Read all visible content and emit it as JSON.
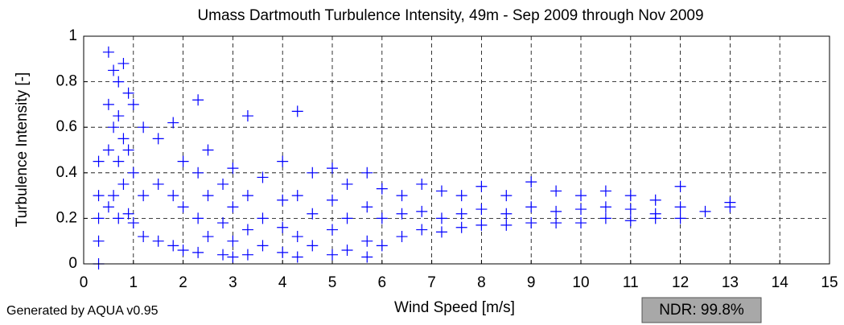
{
  "chart_data": {
    "type": "scatter",
    "title": "Umass Dartmouth Turbulence Intensity, 49m - Sep 2009 through Nov 2009",
    "x_label": "Wind Speed [m/s]",
    "y_label": "Turbulence Intensity [-]",
    "footer": "Generated by AQUA v0.95",
    "ndr_label": "NDR: 99.8%",
    "xlim": [
      0,
      15
    ],
    "xticks": [
      0,
      1,
      2,
      3,
      4,
      5,
      6,
      7,
      8,
      9,
      10,
      11,
      12,
      13,
      14,
      15
    ],
    "ylim": [
      0,
      1
    ],
    "yticks": [
      0,
      0.2,
      0.4,
      0.6,
      0.8,
      1
    ],
    "grid": true,
    "x": [
      0.3,
      0.3,
      0.3,
      0.3,
      0.3,
      0.5,
      0.5,
      0.5,
      0.5,
      0.6,
      0.6,
      0.6,
      0.7,
      0.7,
      0.7,
      0.7,
      0.8,
      0.8,
      0.8,
      0.9,
      0.9,
      0.9,
      1,
      1,
      1,
      1.2,
      1.2,
      1.2,
      1.5,
      1.5,
      1.5,
      1.8,
      1.8,
      1.8,
      2,
      2,
      2,
      2.3,
      2.3,
      2.3,
      2.3,
      2.5,
      2.5,
      2.5,
      2.8,
      2.8,
      2.8,
      3,
      3,
      3,
      3,
      3.3,
      3.3,
      3.3,
      3.3,
      3.6,
      3.6,
      3.6,
      4,
      4,
      4,
      4,
      4.3,
      4.3,
      4.3,
      4.3,
      4.6,
      4.6,
      4.6,
      5,
      5,
      5,
      5,
      5.3,
      5.3,
      5.3,
      5.7,
      5.7,
      5.7,
      5.7,
      6,
      6,
      6,
      6.4,
      6.4,
      6.4,
      6.8,
      6.8,
      6.8,
      7.2,
      7.2,
      7.2,
      7.6,
      7.6,
      7.6,
      8,
      8,
      8,
      8.5,
      8.5,
      8.5,
      9,
      9,
      9,
      9.5,
      9.5,
      9.5,
      10,
      10,
      10,
      10.5,
      10.5,
      10.5,
      11,
      11,
      11,
      11.5,
      11.5,
      11.5,
      12,
      12,
      12,
      12.5,
      13,
      13
    ],
    "series": [
      {
        "color": "#0000ff",
        "values": [
          0,
          0.1,
          0.2,
          0.3,
          0.45,
          0.93,
          0.7,
          0.5,
          0.25,
          0.85,
          0.6,
          0.3,
          0.8,
          0.65,
          0.45,
          0.2,
          0.88,
          0.55,
          0.35,
          0.75,
          0.5,
          0.22,
          0.7,
          0.4,
          0.18,
          0.6,
          0.3,
          0.12,
          0.55,
          0.35,
          0.1,
          0.62,
          0.3,
          0.08,
          0.45,
          0.25,
          0.06,
          0.72,
          0.4,
          0.2,
          0.05,
          0.5,
          0.3,
          0.12,
          0.35,
          0.18,
          0.04,
          0.42,
          0.25,
          0.1,
          0.03,
          0.65,
          0.3,
          0.15,
          0.04,
          0.38,
          0.2,
          0.08,
          0.45,
          0.28,
          0.16,
          0.05,
          0.67,
          0.3,
          0.12,
          0.03,
          0.4,
          0.22,
          0.08,
          0.42,
          0.28,
          0.15,
          0.04,
          0.35,
          0.2,
          0.06,
          0.4,
          0.25,
          0.1,
          0.03,
          0.33,
          0.2,
          0.08,
          0.3,
          0.22,
          0.12,
          0.35,
          0.23,
          0.15,
          0.32,
          0.2,
          0.14,
          0.3,
          0.22,
          0.16,
          0.34,
          0.24,
          0.17,
          0.3,
          0.22,
          0.17,
          0.36,
          0.25,
          0.18,
          0.32,
          0.23,
          0.18,
          0.3,
          0.24,
          0.18,
          0.32,
          0.25,
          0.2,
          0.3,
          0.24,
          0.19,
          0.28,
          0.22,
          0.2,
          0.34,
          0.25,
          0.2,
          0.23,
          0.27,
          0.25
        ]
      }
    ]
  }
}
